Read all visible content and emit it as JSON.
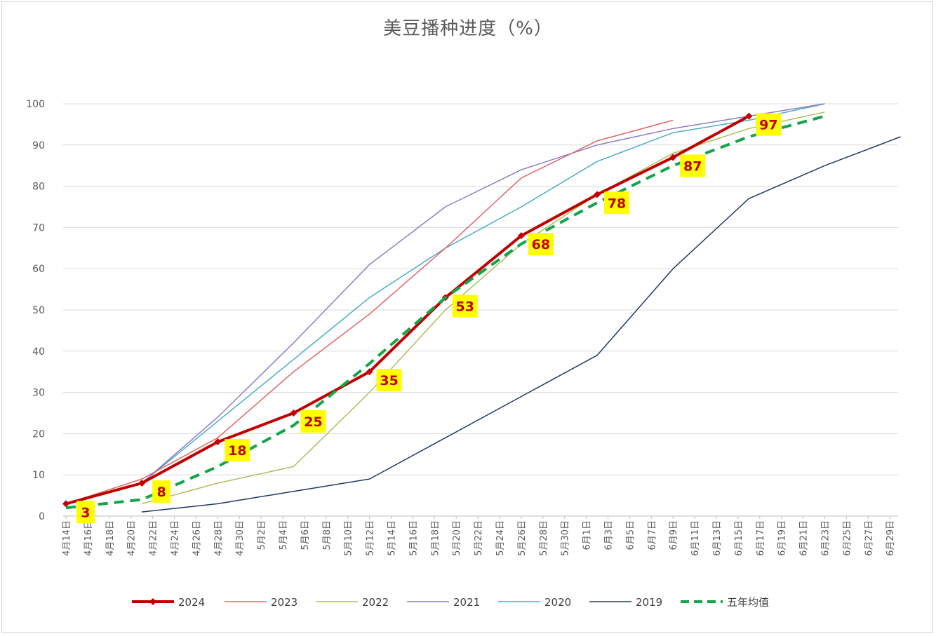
{
  "chart_data": {
    "type": "line",
    "title": "美豆播种进度（%）",
    "xlabel": "",
    "ylabel": "",
    "ylim": [
      0,
      100
    ],
    "yticks": [
      0,
      10,
      20,
      30,
      40,
      50,
      60,
      70,
      80,
      90,
      100
    ],
    "grid": true,
    "legend_position": "bottom",
    "categories": [
      "4月14日",
      "4月16日",
      "4月18日",
      "4月20日",
      "4月22日",
      "4月24日",
      "4月26日",
      "4月28日",
      "4月30日",
      "5月2日",
      "5月4日",
      "5月6日",
      "5月8日",
      "5月10日",
      "5月12日",
      "5月14日",
      "5月16日",
      "5月18日",
      "5月20日",
      "5月22日",
      "5月24日",
      "5月26日",
      "5月28日",
      "5月30日",
      "6月1日",
      "6月3日",
      "6月5日",
      "6月7日",
      "6月9日",
      "6月11日",
      "6月13日",
      "6月15日",
      "6月17日",
      "6月19日",
      "6月21日",
      "6月23日",
      "6月25日",
      "6月27日",
      "6月29日"
    ],
    "series": [
      {
        "name": "2024",
        "color": "#c00000",
        "style": "solid-thick-marker",
        "points": [
          [
            "4月14日",
            3
          ],
          [
            "4月21日",
            8
          ],
          [
            "4月28日",
            18
          ],
          [
            "5月5日",
            25
          ],
          [
            "5月12日",
            35
          ],
          [
            "5月19日",
            53
          ],
          [
            "5月26日",
            68
          ],
          [
            "6月2日",
            78
          ],
          [
            "6月9日",
            87
          ],
          [
            "6月16日",
            97
          ]
        ]
      },
      {
        "name": "2023",
        "color": "#e06666",
        "style": "solid-thin",
        "points": [
          [
            "4月14日",
            3
          ],
          [
            "4月21日",
            9
          ],
          [
            "4月28日",
            19
          ],
          [
            "5月5日",
            35
          ],
          [
            "5月12日",
            49
          ],
          [
            "5月19日",
            65
          ],
          [
            "5月26日",
            82
          ],
          [
            "6月2日",
            91
          ],
          [
            "6月9日",
            96
          ]
        ]
      },
      {
        "name": "2022",
        "color": "#a9c15c",
        "style": "solid-thin",
        "points": [
          [
            "4月21日",
            3
          ],
          [
            "4月28日",
            8
          ],
          [
            "5月5日",
            12
          ],
          [
            "5月12日",
            30
          ],
          [
            "5月19日",
            50
          ],
          [
            "5月26日",
            66
          ],
          [
            "6月2日",
            78
          ],
          [
            "6月9日",
            88
          ],
          [
            "6月16日",
            94
          ],
          [
            "6月23日",
            98
          ]
        ]
      },
      {
        "name": "2021",
        "color": "#8e7cc3",
        "style": "solid-thin",
        "points": [
          [
            "4月14日",
            3
          ],
          [
            "4月21日",
            8
          ],
          [
            "4月28日",
            24
          ],
          [
            "5月5日",
            42
          ],
          [
            "5月12日",
            61
          ],
          [
            "5月19日",
            75
          ],
          [
            "5月26日",
            84
          ],
          [
            "6月2日",
            90
          ],
          [
            "6月9日",
            94
          ],
          [
            "6月16日",
            97
          ],
          [
            "6月23日",
            100
          ]
        ]
      },
      {
        "name": "2020",
        "color": "#4bacc6",
        "style": "solid-thin",
        "points": [
          [
            "4月14日",
            3
          ],
          [
            "4月21日",
            8
          ],
          [
            "4月28日",
            23
          ],
          [
            "5月5日",
            38
          ],
          [
            "5月12日",
            53
          ],
          [
            "5月19日",
            65
          ],
          [
            "5月26日",
            75
          ],
          [
            "6月2日",
            86
          ],
          [
            "6月9日",
            93
          ],
          [
            "6月16日",
            96
          ],
          [
            "6月23日",
            100
          ]
        ]
      },
      {
        "name": "2019",
        "color": "#1f3864",
        "style": "solid-thin",
        "points": [
          [
            "4月21日",
            1
          ],
          [
            "4月28日",
            3
          ],
          [
            "5月5日",
            6
          ],
          [
            "5月12日",
            9
          ],
          [
            "5月19日",
            19
          ],
          [
            "5月26日",
            29
          ],
          [
            "6月2日",
            39
          ],
          [
            "6月9日",
            60
          ],
          [
            "6月16日",
            77
          ],
          [
            "6月23日",
            85
          ],
          [
            "6月30日",
            92
          ]
        ]
      },
      {
        "name": "五年均值",
        "color": "#12a54a",
        "style": "dashed-thick",
        "points": [
          [
            "4月14日",
            2
          ],
          [
            "4月21日",
            4
          ],
          [
            "4月28日",
            12
          ],
          [
            "5月5日",
            22
          ],
          [
            "5月12日",
            37
          ],
          [
            "5月19日",
            53
          ],
          [
            "5月26日",
            66
          ],
          [
            "6月2日",
            76
          ],
          [
            "6月9日",
            85
          ],
          [
            "6月16日",
            92
          ],
          [
            "6月23日",
            97
          ]
        ]
      }
    ],
    "data_labels": [
      {
        "series": "2024",
        "x": "4月14日",
        "text": "3"
      },
      {
        "series": "2024",
        "x": "4月21日",
        "text": "8"
      },
      {
        "series": "2024",
        "x": "4月28日",
        "text": "18"
      },
      {
        "series": "2024",
        "x": "5月5日",
        "text": "25"
      },
      {
        "series": "2024",
        "x": "5月12日",
        "text": "35"
      },
      {
        "series": "2024",
        "x": "5月19日",
        "text": "53"
      },
      {
        "series": "2024",
        "x": "5月26日",
        "text": "68"
      },
      {
        "series": "2024",
        "x": "6月2日",
        "text": "78"
      },
      {
        "series": "2024",
        "x": "6月9日",
        "text": "87"
      },
      {
        "series": "2024",
        "x": "6月16日",
        "text": "97"
      }
    ],
    "data_label_style": {
      "background": "#ffff00",
      "text_color": "#c00000"
    }
  }
}
